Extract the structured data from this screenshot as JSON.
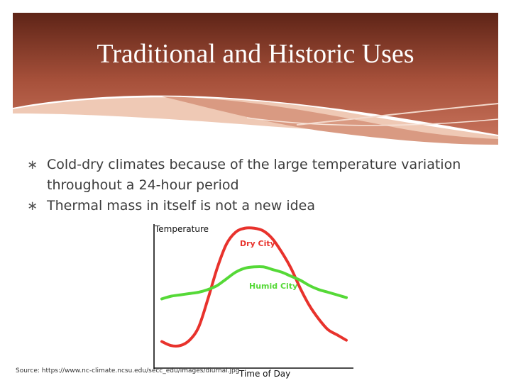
{
  "slide": {
    "title": "Traditional and Historic Uses",
    "bullets": [
      "Cold-dry climates because of the large temperature variation throughout a 24-hour period",
      "Thermal mass in itself is not a new idea"
    ],
    "bullet_glyph": "∗",
    "source": "Source: https://www.nc-climate.ncsu.edu/secc_edu/images/diurnal.jpg"
  },
  "colors": {
    "banner_dark": "#5e2417",
    "banner_light": "#c57059",
    "text": "#3b3b3b",
    "dry_city": "#e8322c",
    "humid_city": "#55d937",
    "axis": "#111111"
  },
  "chart_data": {
    "type": "line",
    "xlabel": "Time of Day",
    "ylabel": "Temperature",
    "grid": false,
    "legend": "inline-labels",
    "xlim": [
      0,
      100
    ],
    "ylim": [
      0,
      100
    ],
    "series": [
      {
        "name": "Dry City",
        "color": "#e8322c",
        "x": [
          0,
          5,
          10,
          15,
          20,
          25,
          30,
          35,
          40,
          45,
          50,
          55,
          60,
          65,
          70,
          75,
          80,
          85,
          90,
          95,
          100
        ],
        "y": [
          13,
          10,
          10,
          14,
          24,
          45,
          68,
          86,
          95,
          98,
          98,
          96,
          90,
          80,
          68,
          53,
          40,
          30,
          22,
          18,
          14
        ]
      },
      {
        "name": "Humid City",
        "color": "#55d937",
        "x": [
          0,
          5,
          10,
          15,
          20,
          25,
          30,
          35,
          40,
          45,
          50,
          55,
          60,
          65,
          70,
          75,
          80,
          85,
          90,
          95,
          100
        ],
        "y": [
          45,
          47,
          48,
          49,
          50,
          52,
          55,
          60,
          65,
          68,
          69,
          69,
          67,
          65,
          62,
          59,
          55,
          52,
          50,
          48,
          46
        ]
      }
    ]
  }
}
